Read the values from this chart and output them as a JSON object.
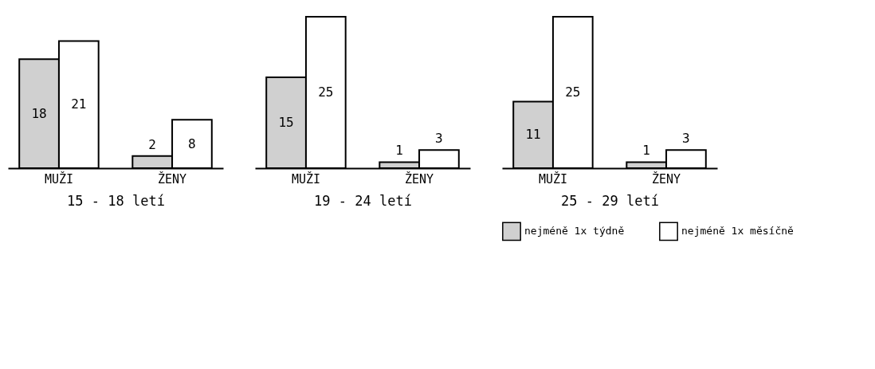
{
  "chart_data": [
    {
      "type": "bar",
      "xlabel": "15 - 18 letí",
      "categories": [
        "MUŽI",
        "ŽENY"
      ],
      "data_labels": true,
      "legend": false,
      "series": [
        {
          "color": "#d0d0d0",
          "values": [
            18,
            2
          ]
        },
        {
          "color": "#ffffff",
          "values": [
            21,
            8
          ]
        }
      ]
    },
    {
      "type": "bar",
      "xlabel": "19 - 24 letí",
      "categories": [
        "MUŽI",
        "ŽENY"
      ],
      "data_labels": true,
      "legend": false,
      "series": [
        {
          "color": "#d0d0d0",
          "values": [
            15,
            1
          ]
        },
        {
          "color": "#ffffff",
          "values": [
            25,
            3
          ]
        }
      ]
    },
    {
      "type": "bar",
      "xlabel": "25 - 29 letí",
      "categories": [
        "MUŽI",
        "ŽENY"
      ],
      "data_labels": true,
      "legend": "bottom",
      "series": [
        {
          "name": "nejméně 1x týdně",
          "color": "#d0d0d0",
          "values": [
            11,
            1
          ]
        },
        {
          "name": "nejméně 1x měsíčně",
          "color": "#ffffff",
          "values": [
            25,
            3
          ]
        }
      ]
    }
  ]
}
